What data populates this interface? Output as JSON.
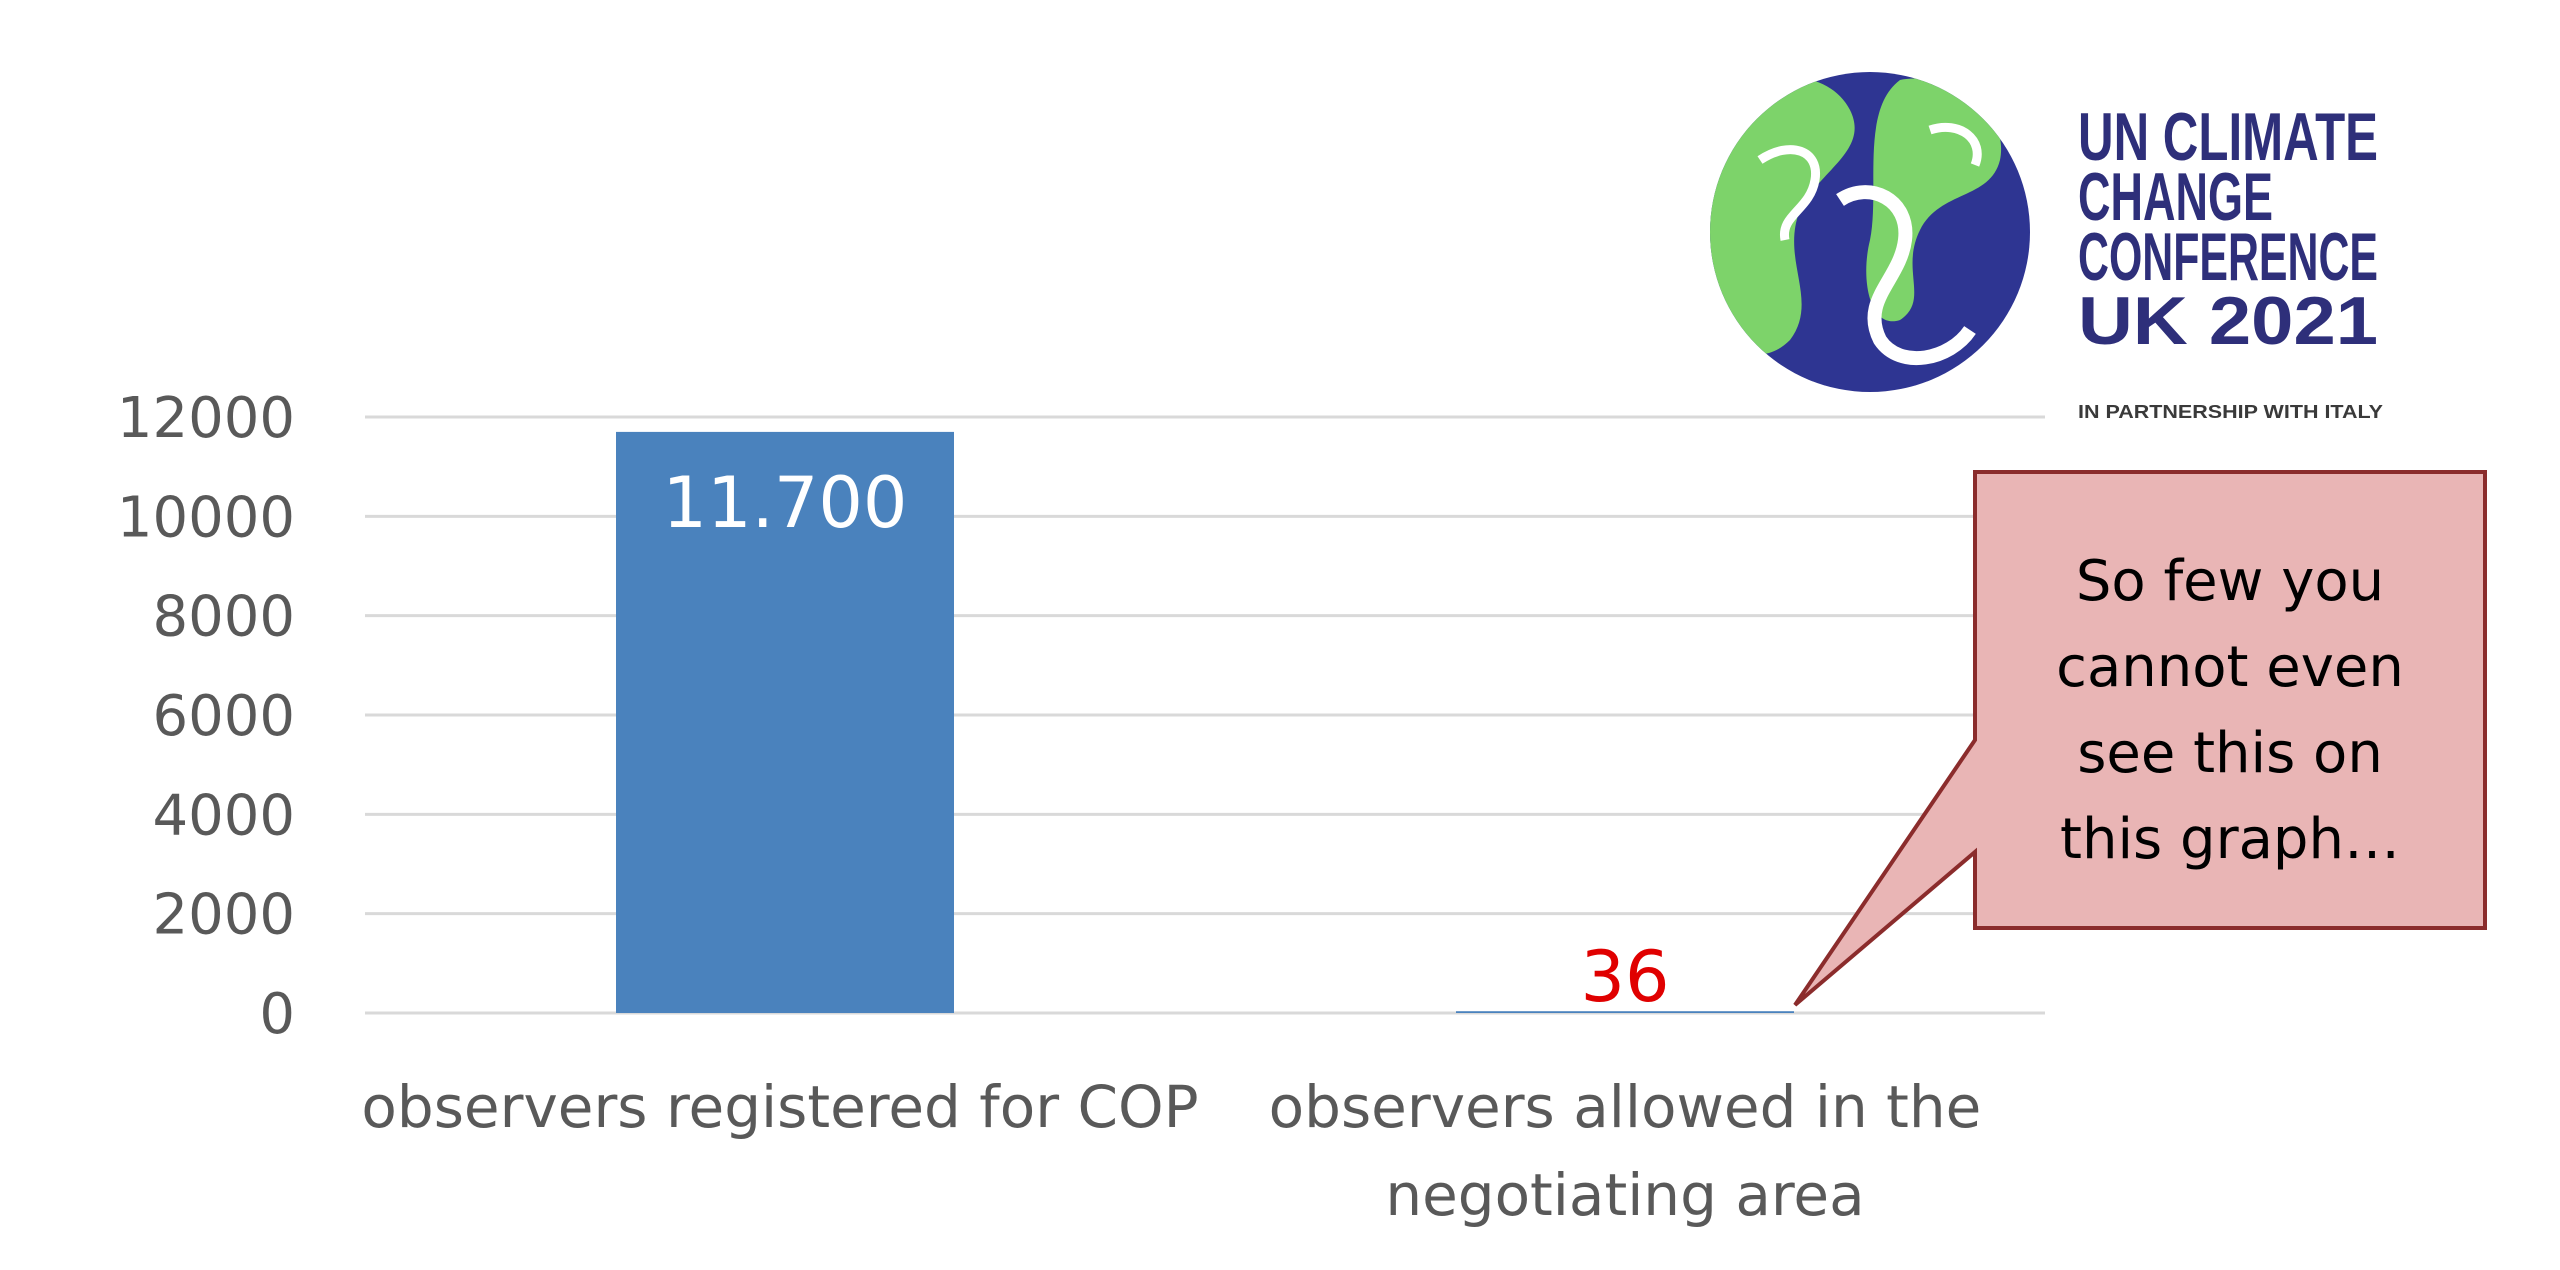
{
  "chart_data": {
    "type": "bar",
    "categories": [
      "observers registered for COP",
      "observers allowed in the negotiating area"
    ],
    "category_lines": [
      [
        "observers registered for COP"
      ],
      [
        "observers allowed in the",
        "negotiating area"
      ]
    ],
    "values": [
      11700,
      36
    ],
    "data_labels": [
      "11.700",
      "36"
    ],
    "yticks": [
      "0",
      "2000",
      "4000",
      "6000",
      "8000",
      "10000",
      "12000"
    ],
    "ylim": [
      0,
      12000
    ],
    "grid": true,
    "colors": {
      "bar": "#4a82bd",
      "gridline": "#d9d9d9",
      "highlight_label": "#e00000"
    }
  },
  "callout": {
    "lines": [
      "So few you",
      "cannot even",
      "see this on",
      "this graph…"
    ],
    "fill": "#e9b5b5",
    "stroke": "#8b2c2c"
  },
  "logo": {
    "lines": [
      "UN CLIMATE",
      "CHANGE",
      "CONFERENCE",
      "UK 2021"
    ],
    "subtitle": "IN PARTNERSHIP WITH ITALY",
    "colors": {
      "text": "#2e2f7a",
      "globe_blue": "#2e3592",
      "globe_green": "#7dd36a"
    }
  }
}
